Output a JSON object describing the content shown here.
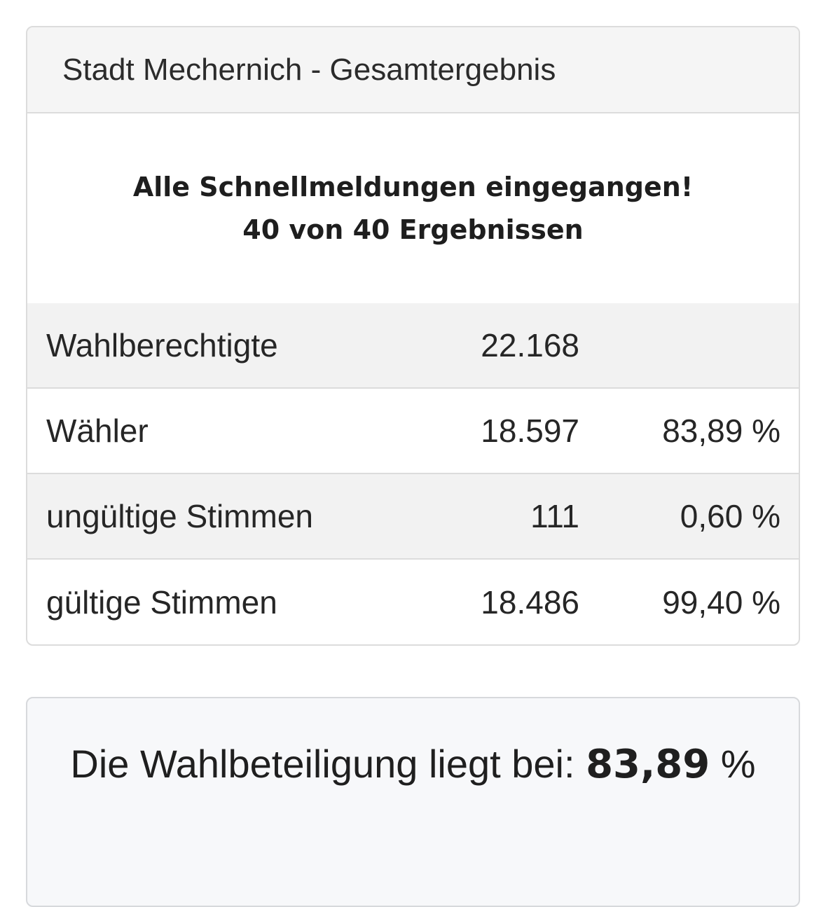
{
  "header": {
    "title": "Stadt Mechernich - Gesamtergebnis"
  },
  "notice": {
    "line1": "Alle Schnellmeldungen eingegangen!",
    "line2": "40 von 40 Ergebnissen"
  },
  "stats": [
    {
      "label": "Wahlberechtigte",
      "value": "22.168",
      "percent": ""
    },
    {
      "label": "Wähler",
      "value": "18.597",
      "percent": "83,89 %"
    },
    {
      "label": "ungültige Stimmen",
      "value": "111",
      "percent": "0,60 %"
    },
    {
      "label": "gültige Stimmen",
      "value": "18.486",
      "percent": "99,40 %"
    }
  ],
  "turnout": {
    "prefix": "Die Wahlbeteiligung liegt bei: ",
    "value": "83,89",
    "unit": "%"
  }
}
